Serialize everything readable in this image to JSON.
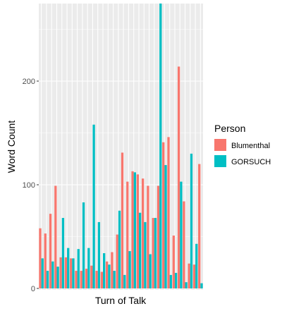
{
  "chart_data": {
    "type": "bar",
    "xlabel": "Turn of Talk",
    "ylabel": "Word Count",
    "ylim": [
      0,
      275
    ],
    "yticks": [
      0,
      100,
      200
    ],
    "grid": true,
    "legend": {
      "title": "Person",
      "placement": "right",
      "entries": [
        {
          "name": "Blumenthal",
          "color": "#F8766D"
        },
        {
          "name": "GORSUCH",
          "color": "#00BFC4"
        }
      ]
    },
    "series": [
      {
        "name": "Blumenthal",
        "color": "#F8766D",
        "values": [
          58,
          53,
          72,
          99,
          30,
          30,
          29,
          17,
          17,
          19,
          22,
          17,
          16,
          26,
          35,
          52,
          131,
          103,
          113,
          110,
          106,
          99,
          68,
          99,
          141,
          146,
          51,
          214,
          84,
          24,
          23,
          120
        ]
      },
      {
        "name": "GORSUCH",
        "color": "#00BFC4",
        "values": [
          29,
          17,
          26,
          21,
          68,
          39,
          29,
          38,
          83,
          39,
          158,
          64,
          34,
          23,
          17,
          75,
          13,
          36,
          112,
          73,
          64,
          33,
          68,
          275,
          119,
          13,
          15,
          103,
          6,
          130,
          43,
          5
        ]
      }
    ]
  }
}
